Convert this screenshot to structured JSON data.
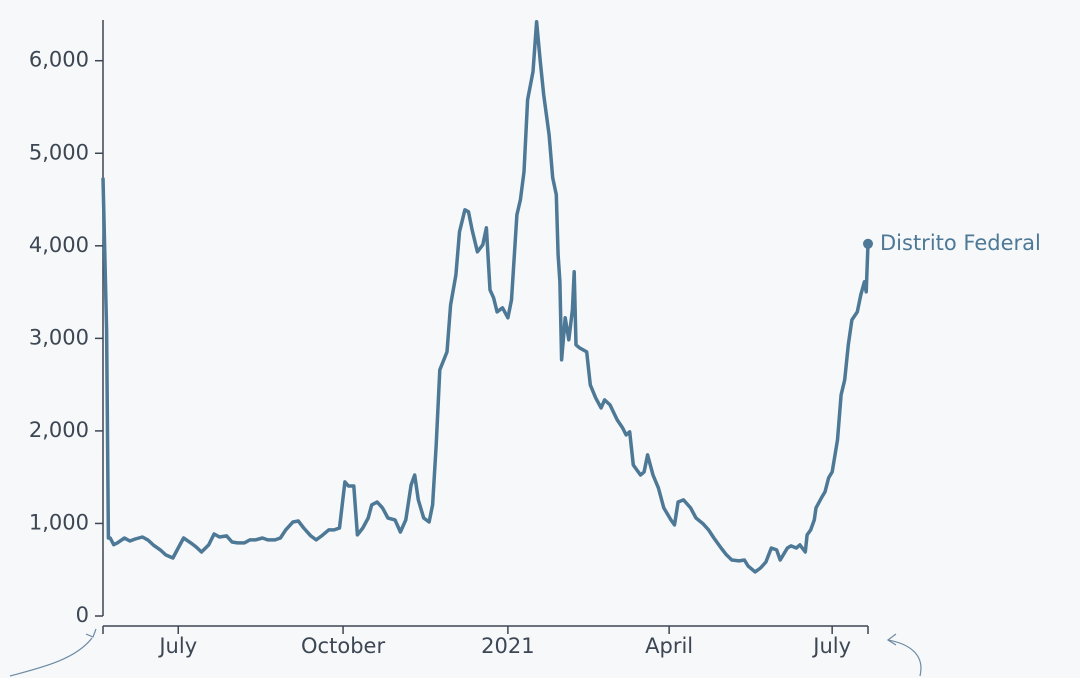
{
  "chart_data": {
    "type": "line",
    "xlim": [
      0,
      427
    ],
    "xticks": [
      {
        "value": 42,
        "label": "July"
      },
      {
        "value": 134,
        "label": "October"
      },
      {
        "value": 226,
        "label": "2021"
      },
      {
        "value": 316,
        "label": "April"
      },
      {
        "value": 407,
        "label": "July"
      }
    ],
    "ylim": [
      0,
      6440
    ],
    "yticks": [
      0,
      {
        "value": 1000,
        "label": "1,000"
      },
      {
        "value": 2000,
        "label": "2,000"
      },
      {
        "value": 3000,
        "label": "3,000"
      },
      {
        "value": 4000,
        "label": "4,000"
      },
      {
        "value": 5000,
        "label": "5,000"
      },
      {
        "value": 6000,
        "label": "6,000"
      }
    ],
    "x": [
      0,
      2,
      3,
      4,
      6,
      8,
      12,
      15,
      18,
      22,
      25,
      28,
      32,
      35,
      39,
      42,
      45,
      49,
      52,
      55,
      59,
      62,
      65,
      69,
      72,
      75,
      79,
      82,
      85,
      89,
      92,
      96,
      99,
      102,
      106,
      109,
      112,
      116,
      119,
      122,
      126,
      129,
      132,
      135,
      137,
      140,
      142,
      145,
      148,
      150,
      153,
      156,
      159,
      163,
      166,
      169,
      172,
      174,
      176,
      179,
      182,
      184,
      186,
      188,
      192,
      194,
      197,
      199,
      202,
      204,
      206,
      209,
      212,
      214,
      216,
      218,
      220,
      223,
      226,
      228,
      231,
      233,
      235,
      237,
      240,
      242,
      244,
      246,
      249,
      251,
      253,
      254,
      255,
      256,
      258,
      260,
      262,
      263,
      264,
      266,
      270,
      272,
      275,
      278,
      280,
      283,
      287,
      290,
      292,
      294,
      296,
      300,
      302,
      304,
      307,
      310,
      313,
      317,
      319,
      321,
      324,
      328,
      331,
      335,
      338,
      341,
      345,
      348,
      351,
      355,
      358,
      360,
      364,
      367,
      370,
      373,
      376,
      378,
      382,
      384,
      387,
      389,
      392,
      393,
      395,
      397,
      398,
      401,
      403,
      405,
      407,
      410,
      412,
      414,
      416,
      418,
      421,
      423,
      425,
      426,
      427
    ],
    "series": [
      {
        "name": "Distrito Federal",
        "color": "#4d7896",
        "values": [
          4735,
          3090,
          843,
          843,
          770,
          790,
          843,
          810,
          832,
          854,
          822,
          768,
          714,
          660,
          627,
          735,
          843,
          790,
          746,
          692,
          768,
          886,
          854,
          865,
          800,
          790,
          790,
          822,
          822,
          843,
          822,
          822,
          843,
          930,
          1016,
          1027,
          951,
          865,
          822,
          865,
          930,
          930,
          951,
          1449,
          1405,
          1405,
          876,
          951,
          1059,
          1200,
          1232,
          1168,
          1059,
          1038,
          908,
          1038,
          1416,
          1524,
          1254,
          1059,
          1016,
          1200,
          1849,
          2659,
          2854,
          3362,
          3686,
          4151,
          4389,
          4368,
          4173,
          3935,
          4011,
          4195,
          3524,
          3438,
          3286,
          3330,
          3222,
          3416,
          4335,
          4497,
          4800,
          5578,
          5881,
          6422,
          6011,
          5632,
          5200,
          4735,
          4551,
          3903,
          3611,
          2768,
          3222,
          2984,
          3308,
          3719,
          2930,
          2897,
          2854,
          2497,
          2357,
          2249,
          2335,
          2281,
          2119,
          2032,
          1957,
          1989,
          1632,
          1524,
          1557,
          1741,
          1524,
          1384,
          1168,
          1038,
          984,
          1232,
          1254,
          1168,
          1059,
          995,
          930,
          843,
          735,
          660,
          605,
          595,
          605,
          541,
          476,
          519,
          584,
          735,
          714,
          605,
          735,
          757,
          735,
          768,
          692,
          876,
          930,
          1038,
          1168,
          1276,
          1341,
          1492,
          1557,
          1903,
          2389,
          2551,
          2930,
          3200,
          3286,
          3470,
          3611,
          3503,
          4022
        ]
      }
    ]
  }
}
